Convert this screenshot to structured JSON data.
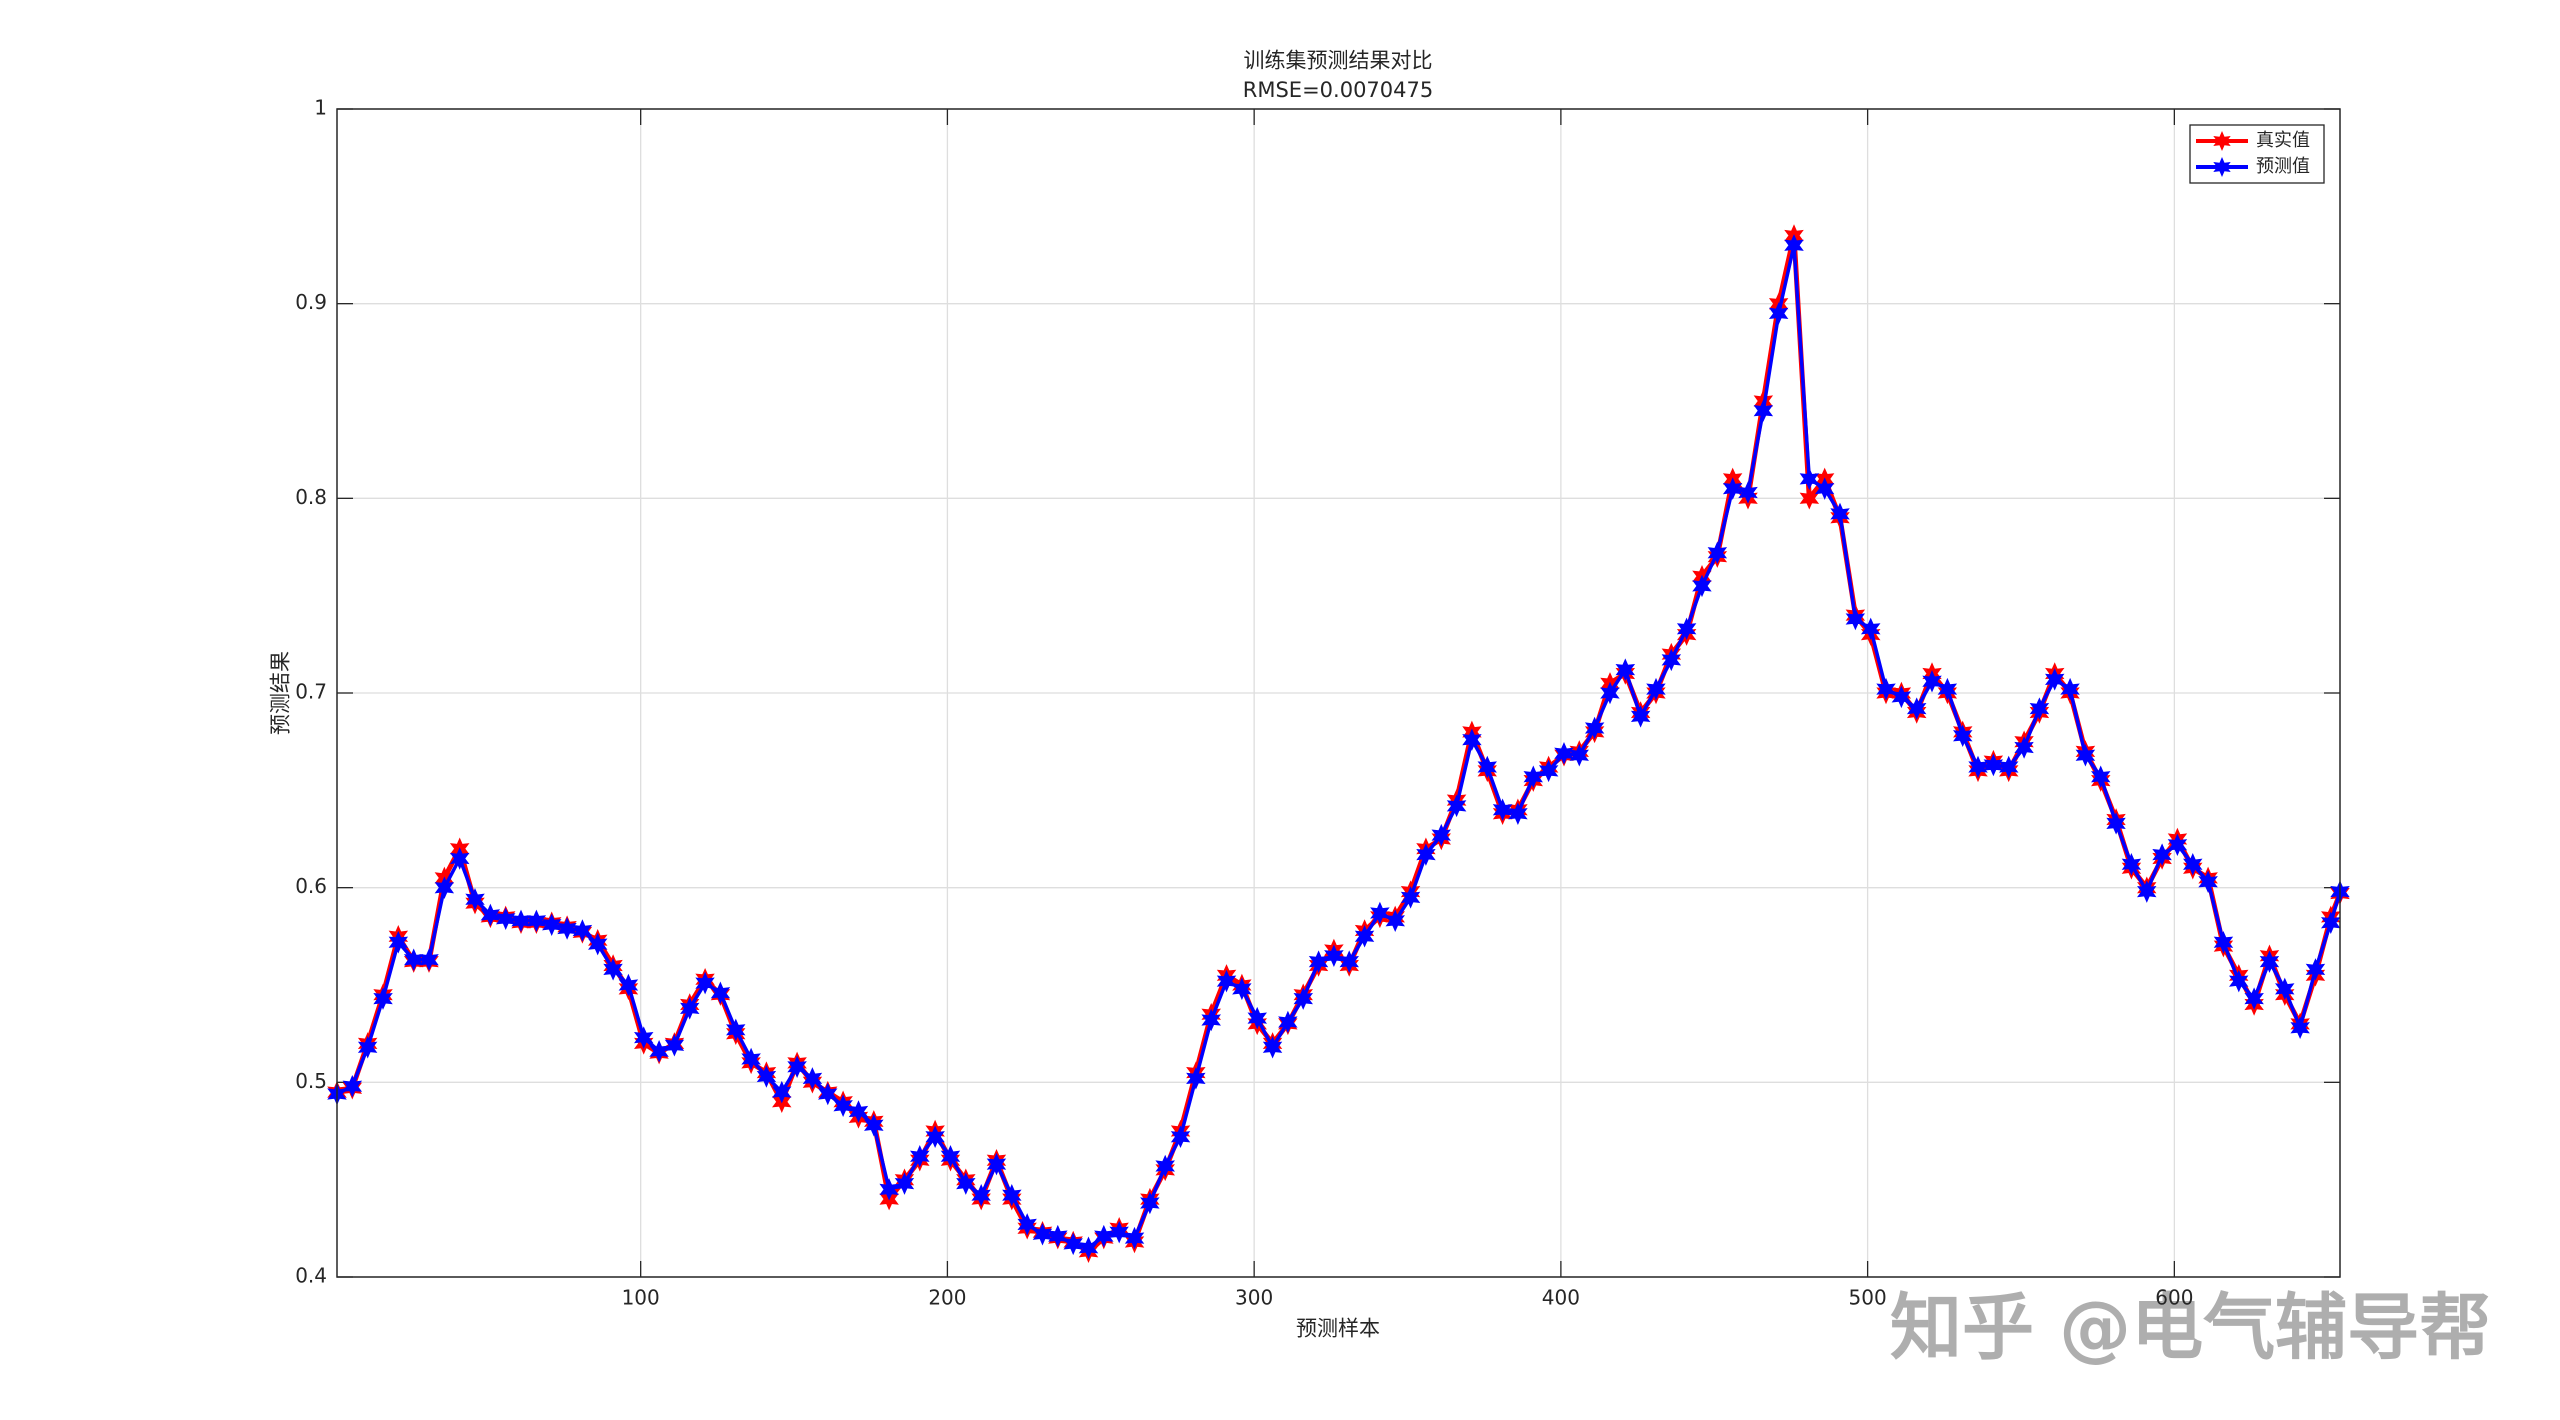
{
  "chart_data": {
    "type": "line",
    "title": "训练集预测结果对比",
    "subtitle": "RMSE=0.0070475",
    "x_label": "预测样本",
    "y_label": "预测结果",
    "watermark": "知乎 @电气辅导帮",
    "xlim": [
      1,
      654
    ],
    "xticks": [
      100,
      200,
      300,
      400,
      500,
      600
    ],
    "ylim": [
      0.4,
      1
    ],
    "yticks": [
      0.4,
      0.5,
      0.6,
      0.7,
      0.8,
      0.9,
      1
    ],
    "grid": true,
    "legend": "northeast",
    "x": [
      1,
      6,
      11,
      16,
      21,
      26,
      31,
      36,
      41,
      46,
      51,
      56,
      61,
      66,
      71,
      76,
      81,
      86,
      91,
      96,
      101,
      106,
      111,
      116,
      121,
      126,
      131,
      136,
      141,
      146,
      151,
      156,
      161,
      166,
      171,
      176,
      181,
      186,
      191,
      196,
      201,
      206,
      211,
      216,
      221,
      226,
      231,
      236,
      241,
      246,
      251,
      256,
      261,
      266,
      271,
      276,
      281,
      286,
      291,
      296,
      301,
      306,
      311,
      316,
      321,
      326,
      331,
      336,
      341,
      346,
      351,
      356,
      361,
      366,
      371,
      376,
      381,
      386,
      391,
      396,
      401,
      406,
      411,
      416,
      421,
      426,
      431,
      436,
      441,
      446,
      451,
      456,
      461,
      466,
      471,
      476,
      481,
      486,
      491,
      496,
      501,
      506,
      511,
      516,
      521,
      526,
      531,
      536,
      541,
      546,
      551,
      556,
      561,
      566,
      571,
      576,
      581,
      586,
      591,
      596,
      601,
      606,
      611,
      616,
      621,
      626,
      631,
      636,
      641,
      646,
      651,
      654
    ],
    "series": [
      {
        "name": "真实值",
        "color": "#ff0000",
        "values": [
          0.495,
          0.497,
          0.52,
          0.545,
          0.575,
          0.562,
          0.562,
          0.605,
          0.62,
          0.592,
          0.585,
          0.585,
          0.582,
          0.582,
          0.582,
          0.58,
          0.577,
          0.573,
          0.56,
          0.548,
          0.52,
          0.515,
          0.52,
          0.54,
          0.553,
          0.545,
          0.525,
          0.51,
          0.505,
          0.49,
          0.51,
          0.5,
          0.495,
          0.49,
          0.482,
          0.48,
          0.44,
          0.45,
          0.46,
          0.475,
          0.46,
          0.45,
          0.44,
          0.46,
          0.44,
          0.425,
          0.423,
          0.42,
          0.418,
          0.413,
          0.42,
          0.425,
          0.418,
          0.44,
          0.455,
          0.475,
          0.505,
          0.535,
          0.555,
          0.55,
          0.53,
          0.52,
          0.53,
          0.545,
          0.56,
          0.568,
          0.56,
          0.578,
          0.585,
          0.585,
          0.598,
          0.62,
          0.625,
          0.645,
          0.68,
          0.66,
          0.638,
          0.64,
          0.655,
          0.662,
          0.668,
          0.67,
          0.68,
          0.705,
          0.71,
          0.69,
          0.7,
          0.72,
          0.73,
          0.76,
          0.77,
          0.81,
          0.8,
          0.85,
          0.9,
          0.935,
          0.8,
          0.81,
          0.79,
          0.74,
          0.73,
          0.7,
          0.7,
          0.69,
          0.71,
          0.7,
          0.68,
          0.66,
          0.665,
          0.66,
          0.675,
          0.69,
          0.71,
          0.7,
          0.67,
          0.655,
          0.635,
          0.61,
          0.6,
          0.615,
          0.625,
          0.61,
          0.605,
          0.57,
          0.555,
          0.54,
          0.565,
          0.545,
          0.53,
          0.555,
          0.585,
          0.597
        ]
      },
      {
        "name": "预测值",
        "color": "#0000ff",
        "values": [
          0.494,
          0.498,
          0.518,
          0.543,
          0.572,
          0.563,
          0.563,
          0.6,
          0.615,
          0.594,
          0.586,
          0.584,
          0.583,
          0.583,
          0.581,
          0.579,
          0.578,
          0.571,
          0.558,
          0.55,
          0.523,
          0.516,
          0.519,
          0.538,
          0.551,
          0.546,
          0.527,
          0.512,
          0.503,
          0.495,
          0.508,
          0.502,
          0.494,
          0.488,
          0.485,
          0.478,
          0.445,
          0.448,
          0.462,
          0.472,
          0.462,
          0.448,
          0.442,
          0.458,
          0.442,
          0.427,
          0.422,
          0.421,
          0.417,
          0.415,
          0.421,
          0.423,
          0.42,
          0.438,
          0.457,
          0.472,
          0.502,
          0.532,
          0.552,
          0.548,
          0.533,
          0.518,
          0.531,
          0.543,
          0.562,
          0.565,
          0.562,
          0.575,
          0.587,
          0.583,
          0.595,
          0.617,
          0.627,
          0.642,
          0.676,
          0.662,
          0.64,
          0.638,
          0.657,
          0.66,
          0.669,
          0.668,
          0.682,
          0.7,
          0.712,
          0.688,
          0.702,
          0.717,
          0.733,
          0.755,
          0.772,
          0.805,
          0.803,
          0.845,
          0.895,
          0.93,
          0.81,
          0.805,
          0.792,
          0.738,
          0.733,
          0.702,
          0.698,
          0.692,
          0.706,
          0.702,
          0.678,
          0.662,
          0.663,
          0.662,
          0.672,
          0.692,
          0.707,
          0.702,
          0.668,
          0.657,
          0.633,
          0.612,
          0.598,
          0.617,
          0.622,
          0.612,
          0.603,
          0.572,
          0.552,
          0.543,
          0.562,
          0.548,
          0.528,
          0.558,
          0.582,
          0.598
        ]
      }
    ]
  }
}
